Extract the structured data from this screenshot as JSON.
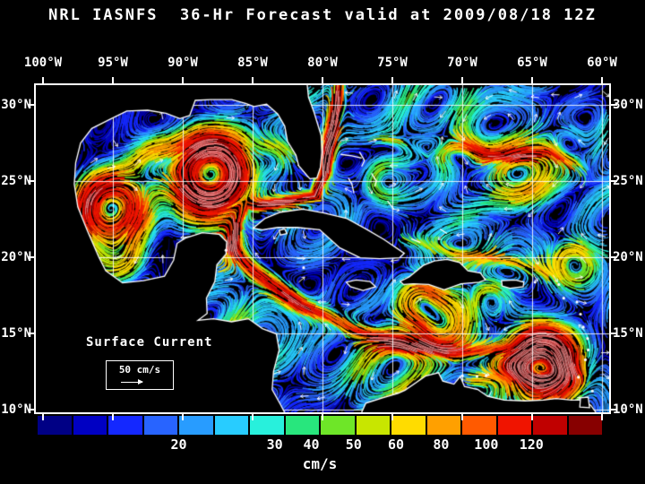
{
  "title": "NRL IASNFS  36-Hr Forecast valid at 2009/08/18 12Z",
  "axes": {
    "lon_labels": [
      "100°W",
      "95°W",
      "90°W",
      "85°W",
      "80°W",
      "75°W",
      "70°W",
      "65°W",
      "60°W"
    ],
    "lat_labels": [
      "30°N",
      "25°N",
      "20°N",
      "15°N",
      "10°N"
    ]
  },
  "map": {
    "legend_title": "Surface Current",
    "scale_label": "50 cm/s"
  },
  "colorbar": {
    "unit": "cm/s",
    "tick_labels": [
      "20",
      "30",
      "40",
      "50",
      "60",
      "80",
      "100",
      "120"
    ],
    "tick_positions_pct": [
      25,
      42,
      48.5,
      56,
      63.5,
      71.5,
      79.5,
      87.5
    ],
    "colors": [
      "#000085",
      "#0000c3",
      "#1428ff",
      "#2864ff",
      "#289cff",
      "#28ccff",
      "#28f0dc",
      "#28e67d",
      "#6ee628",
      "#c8e600",
      "#ffdc00",
      "#ffa000",
      "#ff5a00",
      "#f01400",
      "#c00000",
      "#870000"
    ]
  },
  "chart_data": {
    "type": "heatmap",
    "title": "NRL IASNFS 36-Hr Forecast valid at 2009/08/18 12Z",
    "variable": "Surface Current speed",
    "unit": "cm/s",
    "lon_ticks_deg_w": [
      100,
      95,
      90,
      85,
      80,
      75,
      70,
      65,
      60
    ],
    "lat_ticks_deg_n": [
      30,
      25,
      20,
      15,
      10
    ],
    "colorbar_tick_values": [
      20,
      30,
      40,
      50,
      60,
      80,
      100,
      120
    ],
    "reference_vector_cm_s": 50
  }
}
